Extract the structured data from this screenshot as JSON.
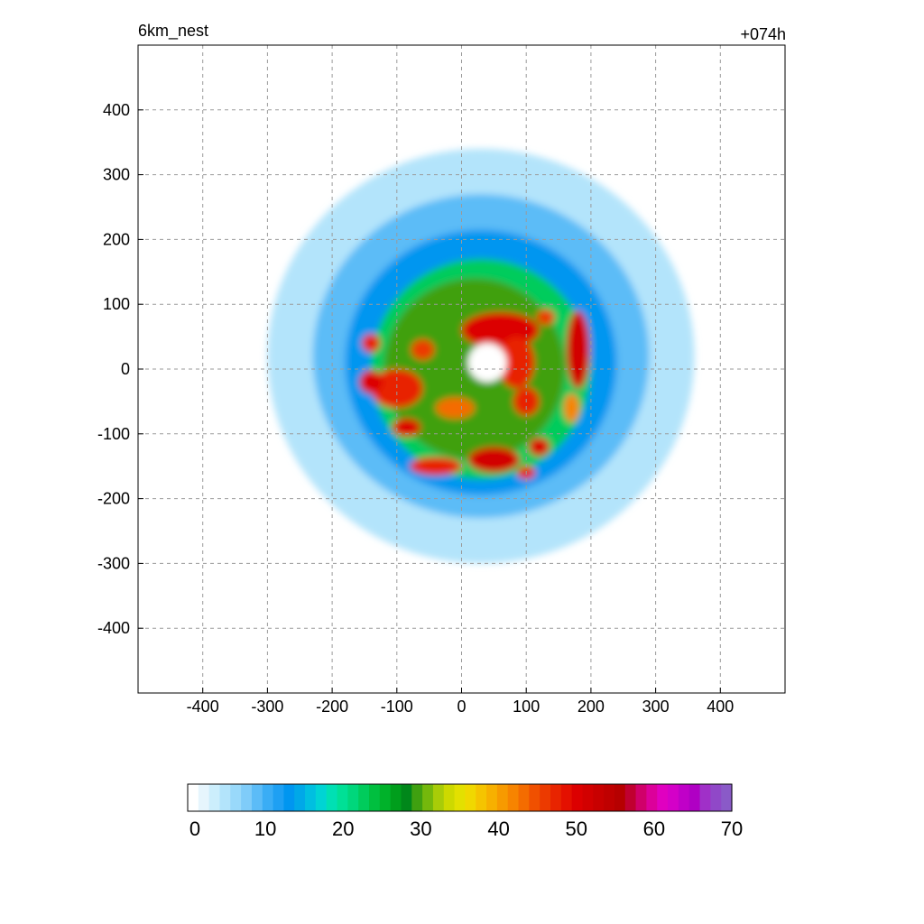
{
  "chart_data": {
    "type": "heatmap",
    "title_left": "6km_nest",
    "title_right": "+074h",
    "xlabel": "",
    "ylabel": "",
    "xlim": [
      -500,
      500
    ],
    "ylim": [
      -500,
      500
    ],
    "x_ticks": [
      -400,
      -300,
      -200,
      -100,
      0,
      100,
      200,
      300,
      400
    ],
    "y_ticks": [
      400,
      300,
      200,
      100,
      0,
      -100,
      -200,
      -300,
      -400
    ],
    "x_tick_labels": [
      "-400",
      "-300",
      "-200",
      "-100",
      "0",
      "100",
      "200",
      "300",
      "400"
    ],
    "y_tick_labels": [
      "400",
      "300",
      "200",
      "100",
      "0",
      "-100",
      "-200",
      "-300",
      "-400"
    ],
    "grid": true,
    "colorbar": {
      "range": [
        0,
        70
      ],
      "ticks": [
        0,
        10,
        20,
        30,
        40,
        50,
        60,
        70
      ],
      "tick_labels": [
        "0",
        "10",
        "20",
        "30",
        "40",
        "50",
        "60",
        "70"
      ],
      "colors": [
        "#ffffff",
        "#e6f5fd",
        "#cceefc",
        "#b3e4fb",
        "#99d9fa",
        "#7fccf9",
        "#5cbcf7",
        "#3aadf5",
        "#1ea0f3",
        "#0096f0",
        "#00a8e8",
        "#00bfe0",
        "#00d4d4",
        "#00e0b4",
        "#00e096",
        "#00d77c",
        "#00cc5c",
        "#00bf3f",
        "#00b22a",
        "#009e1c",
        "#00871a",
        "#3fa010",
        "#74b80c",
        "#a8cc08",
        "#cdd900",
        "#e3e000",
        "#f0d800",
        "#f5c400",
        "#f7b000",
        "#f79a00",
        "#f78400",
        "#f46c00",
        "#f05000",
        "#ec3a00",
        "#e82400",
        "#e41000",
        "#dc0000",
        "#d20000",
        "#c80000",
        "#bf0000",
        "#b60000",
        "#c00030",
        "#d0006a",
        "#dc009a",
        "#e000c0",
        "#d400c8",
        "#c000c8",
        "#b000c4",
        "#a030c8",
        "#9048c8",
        "#8a5ac8"
      ]
    },
    "field": {
      "variable_unit_note": "",
      "eye_center": [
        40,
        10
      ],
      "eye_radius": 22,
      "cells": [
        {
          "x": 40,
          "y": 10,
          "rx": 30,
          "ry": 30,
          "v": 0
        },
        {
          "x": 30,
          "y": 20,
          "rx": 330,
          "ry": 320,
          "v": 4
        },
        {
          "x": 30,
          "y": 20,
          "rx": 260,
          "ry": 250,
          "v": 8
        },
        {
          "x": 30,
          "y": 10,
          "rx": 210,
          "ry": 205,
          "v": 12
        },
        {
          "x": 30,
          "y": 0,
          "rx": 170,
          "ry": 170,
          "v": 22
        },
        {
          "x": 20,
          "y": 0,
          "rx": 140,
          "ry": 140,
          "v": 30
        },
        {
          "x": 60,
          "y": 60,
          "rx": 60,
          "ry": 28,
          "v": 50
        },
        {
          "x": 85,
          "y": 10,
          "rx": 28,
          "ry": 40,
          "v": 48
        },
        {
          "x": 180,
          "y": 30,
          "rx": 18,
          "ry": 60,
          "v": 52
        },
        {
          "x": -100,
          "y": -30,
          "rx": 40,
          "ry": 30,
          "v": 48
        },
        {
          "x": -140,
          "y": -20,
          "rx": 18,
          "ry": 18,
          "v": 50
        },
        {
          "x": -85,
          "y": -90,
          "rx": 22,
          "ry": 14,
          "v": 50
        },
        {
          "x": 50,
          "y": -140,
          "rx": 40,
          "ry": 20,
          "v": 52
        },
        {
          "x": -40,
          "y": -150,
          "rx": 40,
          "ry": 14,
          "v": 48
        },
        {
          "x": 120,
          "y": -120,
          "rx": 16,
          "ry": 14,
          "v": 50
        },
        {
          "x": 100,
          "y": -50,
          "rx": 20,
          "ry": 22,
          "v": 47
        },
        {
          "x": -60,
          "y": 30,
          "rx": 18,
          "ry": 16,
          "v": 46
        },
        {
          "x": -140,
          "y": 40,
          "rx": 14,
          "ry": 14,
          "v": 48
        },
        {
          "x": 130,
          "y": 80,
          "rx": 14,
          "ry": 12,
          "v": 46
        },
        {
          "x": 100,
          "y": -160,
          "rx": 14,
          "ry": 10,
          "v": 48
        },
        {
          "x": -10,
          "y": -60,
          "rx": 30,
          "ry": 16,
          "v": 44
        },
        {
          "x": 170,
          "y": -60,
          "rx": 12,
          "ry": 22,
          "v": 42
        }
      ]
    }
  }
}
